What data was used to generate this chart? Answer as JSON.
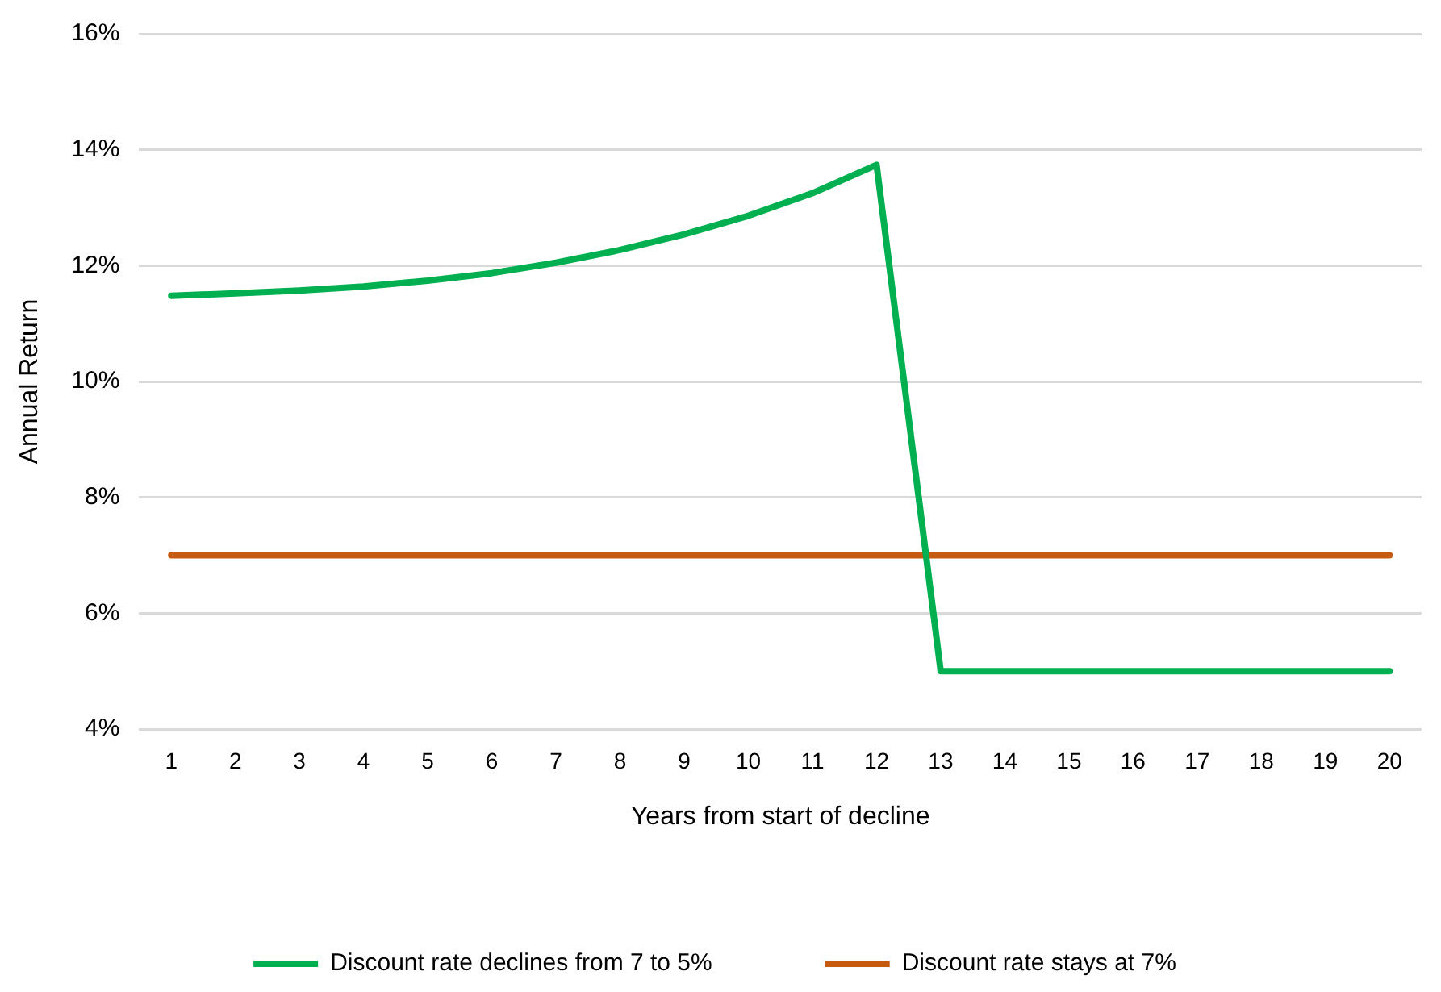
{
  "chart_data": {
    "type": "line",
    "xlabel": "Years from start of decline",
    "ylabel": "Annual Return",
    "x": [
      1,
      2,
      3,
      4,
      5,
      6,
      7,
      8,
      9,
      10,
      11,
      12,
      13,
      14,
      15,
      16,
      17,
      18,
      19,
      20
    ],
    "xlim": [
      0.5,
      20.5
    ],
    "xticks": [
      1,
      2,
      3,
      4,
      5,
      6,
      7,
      8,
      9,
      10,
      11,
      12,
      13,
      14,
      15,
      16,
      17,
      18,
      19,
      20
    ],
    "series": [
      {
        "name": "Discount rate declines from 7 to 5%",
        "color": "#00b050",
        "values": [
          11.48,
          11.52,
          11.57,
          11.64,
          11.74,
          11.87,
          12.05,
          12.27,
          12.54,
          12.86,
          13.25,
          13.74,
          5,
          5,
          5,
          5,
          5,
          5,
          5,
          5
        ]
      },
      {
        "name": "Discount rate stays at 7%",
        "color": "#c55a11",
        "values": [
          7,
          7,
          7,
          7,
          7,
          7,
          7,
          7,
          7,
          7,
          7,
          7,
          7,
          7,
          7,
          7,
          7,
          7,
          7,
          7
        ]
      }
    ],
    "ylim": [
      4,
      16
    ],
    "yticks": [
      {
        "value": 4,
        "label": "4%"
      },
      {
        "value": 6,
        "label": "6%"
      },
      {
        "value": 8,
        "label": "8%"
      },
      {
        "value": 10,
        "label": "10%"
      },
      {
        "value": 12,
        "label": "12%"
      },
      {
        "value": 14,
        "label": "14%"
      },
      {
        "value": 16,
        "label": "16%"
      }
    ],
    "grid": "y",
    "legend": "bottom",
    "marker": "none",
    "line_style": "solid"
  }
}
